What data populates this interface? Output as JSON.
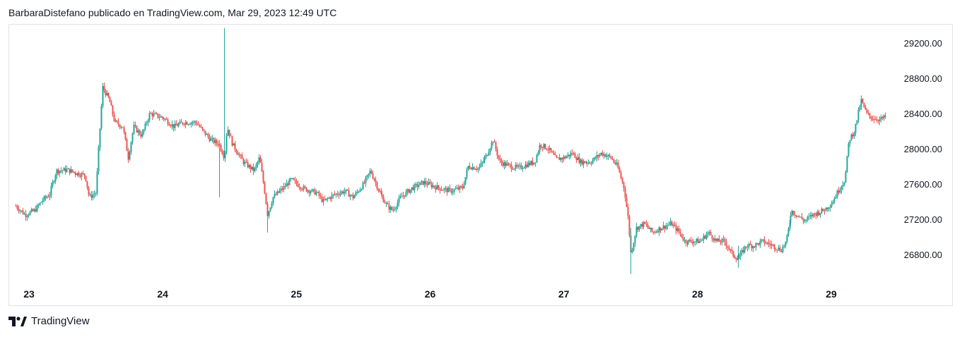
{
  "header": {
    "attribution": "BarbaraDistefano publicado en TradingView.com, Mar 29, 2023 12:49 UTC"
  },
  "footer": {
    "brand": "TradingView",
    "logo_icon": "tradingview-logo-icon"
  },
  "colors": {
    "up": "#26a69a",
    "down": "#ef5350",
    "frame": "#e0e3eb",
    "text": "#131722"
  },
  "chart_data": {
    "type": "candlestick",
    "title": "",
    "xlabel": "",
    "ylabel": "",
    "x_tick_labels": [
      "23",
      "24",
      "25",
      "26",
      "27",
      "28",
      "29"
    ],
    "y_tick_labels": [
      "29200.00",
      "28800.00",
      "28400.00",
      "28000.00",
      "27600.00",
      "27200.00",
      "26800.00"
    ],
    "y_ticks": [
      29200,
      28800,
      28400,
      28000,
      27600,
      27200,
      26800
    ],
    "ylim": [
      26500,
      29400
    ],
    "xlim_days": [
      22.9,
      29.45
    ],
    "grid": false,
    "price_axis_position": "right",
    "close_path": [
      [
        22.9,
        27350
      ],
      [
        22.97,
        27250
      ],
      [
        23.04,
        27300
      ],
      [
        23.1,
        27420
      ],
      [
        23.15,
        27480
      ],
      [
        23.2,
        27750
      ],
      [
        23.28,
        27760
      ],
      [
        23.36,
        27720
      ],
      [
        23.42,
        27700
      ],
      [
        23.45,
        27450
      ],
      [
        23.5,
        27500
      ],
      [
        23.52,
        28000
      ],
      [
        23.55,
        28700
      ],
      [
        23.6,
        28550
      ],
      [
        23.64,
        28300
      ],
      [
        23.7,
        28250
      ],
      [
        23.74,
        27900
      ],
      [
        23.78,
        28250
      ],
      [
        23.84,
        28150
      ],
      [
        23.9,
        28400
      ],
      [
        24.0,
        28350
      ],
      [
        24.08,
        28250
      ],
      [
        24.16,
        28300
      ],
      [
        24.25,
        28300
      ],
      [
        24.3,
        28200
      ],
      [
        24.36,
        28100
      ],
      [
        24.42,
        28050
      ],
      [
        24.46,
        27900
      ],
      [
        24.48,
        28250
      ],
      [
        24.52,
        28050
      ],
      [
        24.6,
        27850
      ],
      [
        24.68,
        27750
      ],
      [
        24.72,
        27900
      ],
      [
        24.76,
        27500
      ],
      [
        24.78,
        27250
      ],
      [
        24.82,
        27450
      ],
      [
        24.9,
        27550
      ],
      [
        24.96,
        27650
      ],
      [
        25.05,
        27550
      ],
      [
        25.15,
        27500
      ],
      [
        25.2,
        27400
      ],
      [
        25.28,
        27480
      ],
      [
        25.36,
        27520
      ],
      [
        25.42,
        27450
      ],
      [
        25.5,
        27600
      ],
      [
        25.55,
        27750
      ],
      [
        25.62,
        27500
      ],
      [
        25.68,
        27350
      ],
      [
        25.72,
        27300
      ],
      [
        25.78,
        27450
      ],
      [
        25.86,
        27550
      ],
      [
        25.95,
        27620
      ],
      [
        26.05,
        27560
      ],
      [
        26.15,
        27520
      ],
      [
        26.24,
        27560
      ],
      [
        26.28,
        27800
      ],
      [
        26.36,
        27780
      ],
      [
        26.42,
        27920
      ],
      [
        26.47,
        28100
      ],
      [
        26.52,
        27850
      ],
      [
        26.6,
        27800
      ],
      [
        26.66,
        27780
      ],
      [
        26.72,
        27820
      ],
      [
        26.78,
        27850
      ],
      [
        26.82,
        28050
      ],
      [
        26.88,
        28000
      ],
      [
        26.94,
        27880
      ],
      [
        27.0,
        27900
      ],
      [
        27.06,
        27950
      ],
      [
        27.12,
        27850
      ],
      [
        27.2,
        27850
      ],
      [
        27.28,
        27950
      ],
      [
        27.35,
        27900
      ],
      [
        27.4,
        27800
      ],
      [
        27.45,
        27550
      ],
      [
        27.48,
        27200
      ],
      [
        27.5,
        26800
      ],
      [
        27.54,
        27100
      ],
      [
        27.6,
        27150
      ],
      [
        27.66,
        27050
      ],
      [
        27.72,
        27100
      ],
      [
        27.8,
        27150
      ],
      [
        27.86,
        27050
      ],
      [
        27.9,
        26950
      ],
      [
        27.96,
        26950
      ],
      [
        28.02,
        26950
      ],
      [
        28.08,
        27050
      ],
      [
        28.14,
        26950
      ],
      [
        28.2,
        26950
      ],
      [
        28.26,
        26800
      ],
      [
        28.3,
        26750
      ],
      [
        28.36,
        26900
      ],
      [
        28.42,
        26900
      ],
      [
        28.48,
        26950
      ],
      [
        28.56,
        26900
      ],
      [
        28.62,
        26850
      ],
      [
        28.66,
        26950
      ],
      [
        28.7,
        27300
      ],
      [
        28.74,
        27250
      ],
      [
        28.8,
        27180
      ],
      [
        28.86,
        27250
      ],
      [
        28.94,
        27300
      ],
      [
        29.0,
        27380
      ],
      [
        29.06,
        27550
      ],
      [
        29.1,
        27650
      ],
      [
        29.13,
        28100
      ],
      [
        29.17,
        28200
      ],
      [
        29.22,
        28550
      ],
      [
        29.26,
        28400
      ],
      [
        29.3,
        28350
      ],
      [
        29.36,
        28330
      ],
      [
        29.4,
        28360
      ]
    ],
    "spikes": [
      {
        "x": 24.46,
        "high": 29370,
        "low": 27900
      },
      {
        "x": 27.5,
        "high": 27100,
        "low": 26580
      },
      {
        "x": 24.42,
        "high": 28100,
        "low": 27450
      },
      {
        "x": 24.78,
        "high": 27400,
        "low": 27050
      },
      {
        "x": 28.3,
        "high": 26900,
        "low": 26650
      }
    ]
  }
}
